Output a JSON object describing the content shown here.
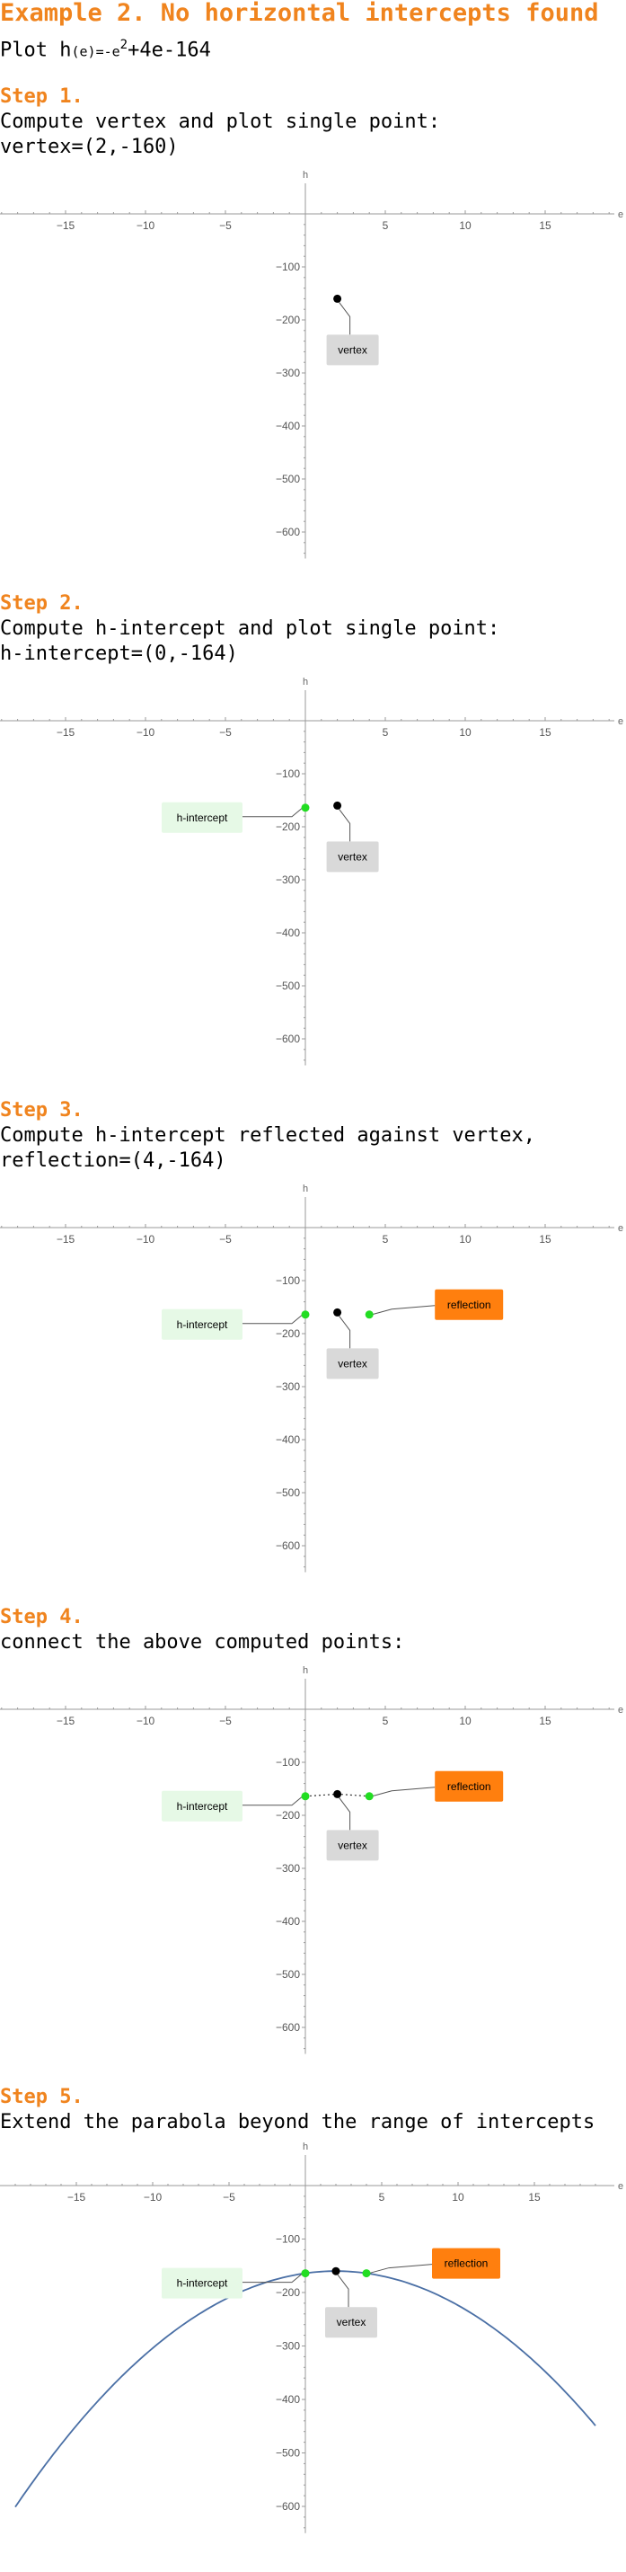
{
  "title": "Example 2. No horizontal intercepts found",
  "intro": {
    "prefix": "Plot h",
    "arg": "(e)",
    "eq": "=-e",
    "exp": "2",
    "rest": "+4e-164"
  },
  "steps": [
    {
      "heading": "Step 1.",
      "lines": [
        "Compute vertex and plot single point:",
        "vertex=(2,-160)"
      ]
    },
    {
      "heading": "Step 2.",
      "lines": [
        "Compute h-intercept and plot single point:",
        "h-intercept=(0,-164)"
      ]
    },
    {
      "heading": "Step 3.",
      "lines": [
        "Compute h-intercept reflected against vertex,",
        "reflection=(4,-164)"
      ]
    },
    {
      "heading": "Step 4.",
      "lines": [
        "connect the above computed points:"
      ]
    },
    {
      "heading": "Step 5.",
      "lines": [
        "Extend the parabola beyond the range of intercepts"
      ]
    }
  ],
  "axes": {
    "xlabel": "e",
    "ylabel": "h",
    "xticks": [
      -15,
      -10,
      -5,
      5,
      10,
      15
    ],
    "yticks": [
      -100,
      -200,
      -300,
      -400,
      -500,
      -600
    ],
    "xrange": [
      -19,
      19.5
    ],
    "yrange": [
      -650,
      0
    ]
  },
  "labels": {
    "vertex": "vertex",
    "h_intercept": "h-intercept",
    "reflection": "reflection"
  },
  "colors": {
    "accent": "#f0841e",
    "point_vertex": "#000000",
    "point_intercept": "#22dd22",
    "curve": "#4a6fa5",
    "label_vertex_bg": "#d9d9d9",
    "label_intercept_bg": "#e6f9e6",
    "label_reflection_bg": "#ff7f0e"
  },
  "chart_data": [
    {
      "type": "scatter",
      "points": {
        "vertex": [
          2,
          -160
        ]
      }
    },
    {
      "type": "scatter",
      "points": {
        "vertex": [
          2,
          -160
        ],
        "h-intercept": [
          0,
          -164
        ]
      }
    },
    {
      "type": "scatter",
      "points": {
        "vertex": [
          2,
          -160
        ],
        "h-intercept": [
          0,
          -164
        ],
        "reflection": [
          4,
          -164
        ]
      }
    },
    {
      "type": "line",
      "points": {
        "vertex": [
          2,
          -160
        ],
        "h-intercept": [
          0,
          -164
        ],
        "reflection": [
          4,
          -164
        ]
      },
      "connect": "dotted"
    },
    {
      "type": "line",
      "function": "h(e) = -e^2 + 4e - 164",
      "domain": [
        -19,
        19
      ],
      "points": {
        "vertex": [
          2,
          -160
        ],
        "h-intercept": [
          0,
          -164
        ],
        "reflection": [
          4,
          -164
        ]
      }
    }
  ]
}
